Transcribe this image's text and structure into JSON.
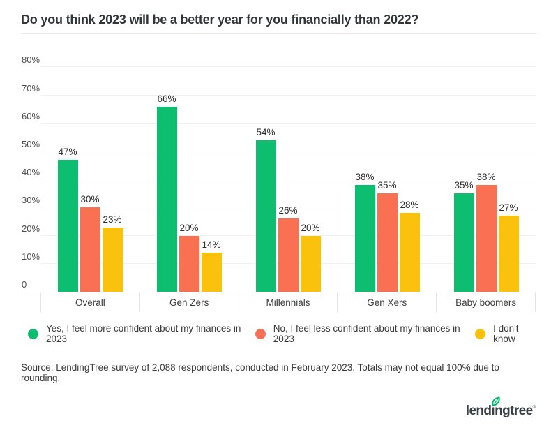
{
  "title": "Do you think 2023 will be a better year for you financially than 2022?",
  "chart_data": {
    "type": "bar",
    "title": "Do you think 2023 will be a better year for you financially than 2022?",
    "categories": [
      "Overall",
      "Gen Zers",
      "Millennials",
      "Gen Xers",
      "Baby boomers"
    ],
    "series": [
      {
        "name": "Yes, I feel more confident about my finances in 2023",
        "color": "#0dbd70",
        "values": [
          47,
          66,
          54,
          38,
          35
        ]
      },
      {
        "name": "No, I feel less confident about my finances in 2023",
        "color": "#fa7052",
        "values": [
          30,
          20,
          26,
          35,
          38
        ]
      },
      {
        "name": "I don't know",
        "color": "#fbc20d",
        "values": [
          23,
          14,
          20,
          28,
          27
        ]
      }
    ],
    "value_suffix": "%",
    "xlabel": "",
    "ylabel": "",
    "ylim": [
      0,
      80
    ],
    "grid": true,
    "legend_position": "bottom",
    "yticks": [
      {
        "label": "80%",
        "value": 80
      },
      {
        "label": "70%",
        "value": 70
      },
      {
        "label": "60%",
        "value": 60
      },
      {
        "label": "50%",
        "value": 50
      },
      {
        "label": "40%",
        "value": 40
      },
      {
        "label": "30%",
        "value": 30
      },
      {
        "label": "20%",
        "value": 20
      },
      {
        "label": "10%",
        "value": 10
      },
      {
        "label": "0",
        "value": 0
      }
    ]
  },
  "source_note": "Source: LendingTree survey of 2,088 respondents, conducted in February 2023. Totals may not equal 100% due to rounding.",
  "logo": {
    "text": "lendingtree",
    "mark": "®",
    "leaf_color": "#00b964",
    "text_color": "#394146"
  },
  "colors": {
    "green": "#0dbd70",
    "orange": "#fa7052",
    "yellow": "#fbc20d",
    "gridline": "#f1f1f1",
    "axis": "#dfdfdf",
    "title_text": "#31363b"
  }
}
